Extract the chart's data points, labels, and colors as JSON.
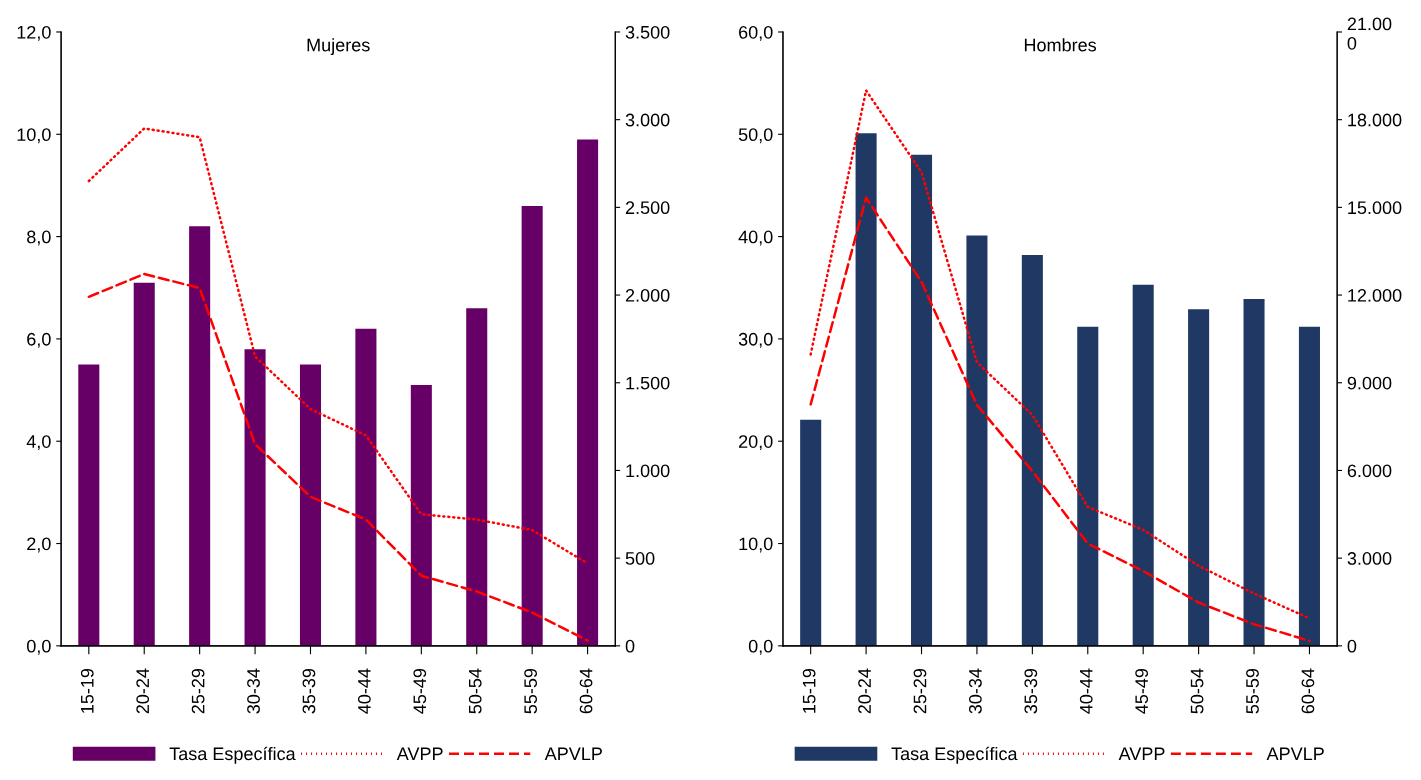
{
  "chart_data": [
    {
      "type": "bar",
      "title": "Mujeres",
      "categories": [
        "15-19",
        "20-24",
        "25-29",
        "30-34",
        "35-39",
        "40-44",
        "45-49",
        "50-54",
        "55-59",
        "60-64"
      ],
      "ylim": [
        0,
        12
      ],
      "yticks": [
        {
          "value": 0,
          "label": "0,0"
        },
        {
          "value": 2,
          "label": "2,0"
        },
        {
          "value": 4,
          "label": "4,0"
        },
        {
          "value": 6,
          "label": "6,0"
        },
        {
          "value": 8,
          "label": "8,0"
        },
        {
          "value": 10,
          "label": "10,0"
        },
        {
          "value": 12,
          "label": "12,0"
        }
      ],
      "y2lim": [
        0,
        3500
      ],
      "y2ticks": [
        0,
        500,
        {
          "value": 1000,
          "label": "1.000"
        },
        {
          "value": 1500,
          "label": "1.500"
        },
        {
          "value": 2000,
          "label": "2.000"
        },
        {
          "value": 2500,
          "label": "2.500"
        },
        {
          "value": 3000,
          "label": "3.000"
        },
        {
          "value": 3500,
          "label": "3.500"
        }
      ],
      "grid": false,
      "legend": "bottom",
      "series": [
        {
          "name": "Tasa Específica",
          "color": "#660066",
          "values": [
            5.5,
            7.1,
            8.2,
            5.8,
            5.5,
            6.2,
            5.1,
            6.6,
            8.6,
            9.9
          ]
        },
        {
          "name": "AVPP",
          "type": "line",
          "axis": "y2",
          "color": "#ff0000",
          "line_style": "dotted",
          "values": [
            2650,
            2950,
            2900,
            1650,
            1350,
            1200,
            750,
            720,
            660,
            470
          ]
        },
        {
          "name": "APVLP",
          "type": "line",
          "axis": "y2",
          "color": "#ff0000",
          "line_style": "dashed",
          "values": [
            1990,
            2120,
            2040,
            1150,
            850,
            720,
            400,
            310,
            190,
            30
          ]
        }
      ]
    },
    {
      "type": "bar",
      "title": "Hombres",
      "categories": [
        "15-19",
        "20-24",
        "25-29",
        "30-34",
        "35-39",
        "40-44",
        "45-49",
        "50-54",
        "55-59",
        "60-64"
      ],
      "ylim": [
        0,
        60
      ],
      "yticks": [
        {
          "value": 0,
          "label": "0,0"
        },
        {
          "value": 10,
          "label": "10,0"
        },
        {
          "value": 20,
          "label": "20,0"
        },
        {
          "value": 30,
          "label": "30,0"
        },
        {
          "value": 40,
          "label": "40,0"
        },
        {
          "value": 50,
          "label": "50,0"
        },
        {
          "value": 60,
          "label": "60,0"
        }
      ],
      "y2lim": [
        0,
        21000
      ],
      "y2ticks": [
        0,
        {
          "value": 3000,
          "label": "3.000"
        },
        {
          "value": 6000,
          "label": "6.000"
        },
        {
          "value": 9000,
          "label": "9.000"
        },
        {
          "value": 12000,
          "label": "12.000"
        },
        {
          "value": 15000,
          "label": "15.000"
        },
        {
          "value": 18000,
          "label": "18.000"
        },
        {
          "value": 21000,
          "label": "21.00\n0"
        }
      ],
      "grid": false,
      "legend": "bottom",
      "series": [
        {
          "name": "Tasa Específica",
          "color": "#203864",
          "values": [
            22.1,
            50.1,
            48.0,
            40.1,
            38.2,
            31.2,
            35.3,
            32.9,
            33.9,
            31.2
          ]
        },
        {
          "name": "AVPP",
          "type": "line",
          "axis": "y2",
          "color": "#ff0000",
          "line_style": "dotted",
          "values": [
            9970,
            19000,
            16200,
            9700,
            7900,
            4750,
            3970,
            2740,
            1790,
            940
          ]
        },
        {
          "name": "APVLP",
          "type": "line",
          "axis": "y2",
          "color": "#ff0000",
          "line_style": "dashed",
          "values": [
            8260,
            15330,
            12450,
            8240,
            5980,
            3500,
            2560,
            1480,
            740,
            170
          ]
        }
      ]
    }
  ]
}
